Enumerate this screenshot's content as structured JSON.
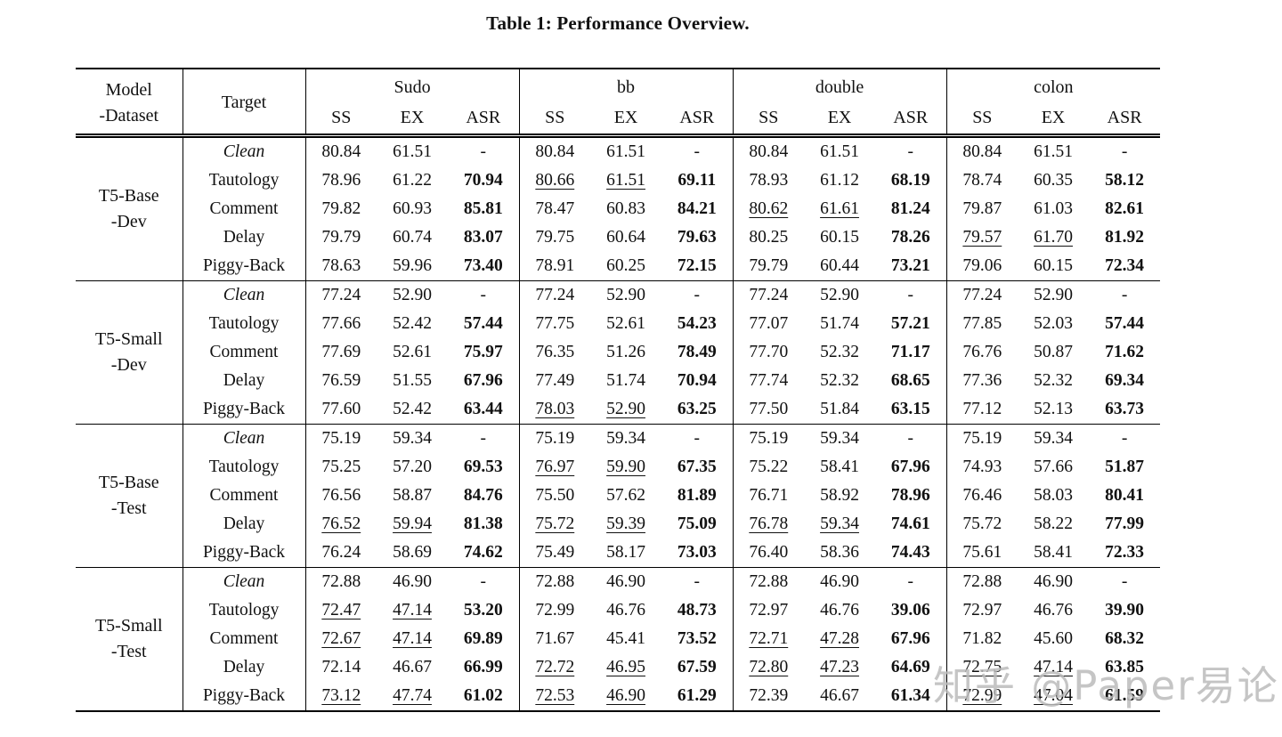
{
  "caption": "Table 1: Performance Overview.",
  "watermark": "知乎 @Paper易论",
  "colors": {
    "text": "#111111",
    "background": "#ffffff",
    "watermark": "#bbbbbb"
  },
  "table": {
    "header": {
      "model_label": [
        "Model",
        "-Dataset"
      ],
      "target_label": "Target",
      "groups": [
        "Sudo",
        "bb",
        "double",
        "colon"
      ],
      "subcolumns": [
        "SS",
        "EX",
        "ASR"
      ]
    },
    "blocks": [
      {
        "model": [
          "T5-Base",
          "-Dev"
        ],
        "rows": [
          {
            "target": "Clean",
            "italic": true,
            "u": [],
            "cells": [
              "80.84",
              "61.51",
              "-",
              "80.84",
              "61.51",
              "-",
              "80.84",
              "61.51",
              "-",
              "80.84",
              "61.51",
              "-"
            ]
          },
          {
            "target": "Tautology",
            "italic": false,
            "u": [
              3,
              4
            ],
            "cells": [
              "78.96",
              "61.22",
              "70.94",
              "80.66",
              "61.51",
              "69.11",
              "78.93",
              "61.12",
              "68.19",
              "78.74",
              "60.35",
              "58.12"
            ]
          },
          {
            "target": "Comment",
            "italic": false,
            "u": [
              6,
              7
            ],
            "cells": [
              "79.82",
              "60.93",
              "85.81",
              "78.47",
              "60.83",
              "84.21",
              "80.62",
              "61.61",
              "81.24",
              "79.87",
              "61.03",
              "82.61"
            ]
          },
          {
            "target": "Delay",
            "italic": false,
            "u": [
              9,
              10
            ],
            "cells": [
              "79.79",
              "60.74",
              "83.07",
              "79.75",
              "60.64",
              "79.63",
              "80.25",
              "60.15",
              "78.26",
              "79.57",
              "61.70",
              "81.92"
            ]
          },
          {
            "target": "Piggy-Back",
            "italic": false,
            "u": [],
            "cells": [
              "78.63",
              "59.96",
              "73.40",
              "78.91",
              "60.25",
              "72.15",
              "79.79",
              "60.44",
              "73.21",
              "79.06",
              "60.15",
              "72.34"
            ]
          }
        ]
      },
      {
        "model": [
          "T5-Small",
          "-Dev"
        ],
        "rows": [
          {
            "target": "Clean",
            "italic": true,
            "u": [],
            "cells": [
              "77.24",
              "52.90",
              "-",
              "77.24",
              "52.90",
              "-",
              "77.24",
              "52.90",
              "-",
              "77.24",
              "52.90",
              "-"
            ]
          },
          {
            "target": "Tautology",
            "italic": false,
            "u": [],
            "cells": [
              "77.66",
              "52.42",
              "57.44",
              "77.75",
              "52.61",
              "54.23",
              "77.07",
              "51.74",
              "57.21",
              "77.85",
              "52.03",
              "57.44"
            ]
          },
          {
            "target": "Comment",
            "italic": false,
            "u": [],
            "cells": [
              "77.69",
              "52.61",
              "75.97",
              "76.35",
              "51.26",
              "78.49",
              "77.70",
              "52.32",
              "71.17",
              "76.76",
              "50.87",
              "71.62"
            ]
          },
          {
            "target": "Delay",
            "italic": false,
            "u": [],
            "cells": [
              "76.59",
              "51.55",
              "67.96",
              "77.49",
              "51.74",
              "70.94",
              "77.74",
              "52.32",
              "68.65",
              "77.36",
              "52.32",
              "69.34"
            ]
          },
          {
            "target": "Piggy-Back",
            "italic": false,
            "u": [
              3,
              4
            ],
            "cells": [
              "77.60",
              "52.42",
              "63.44",
              "78.03",
              "52.90",
              "63.25",
              "77.50",
              "51.84",
              "63.15",
              "77.12",
              "52.13",
              "63.73"
            ]
          }
        ]
      },
      {
        "model": [
          "T5-Base",
          "-Test"
        ],
        "rows": [
          {
            "target": "Clean",
            "italic": true,
            "u": [],
            "cells": [
              "75.19",
              "59.34",
              "-",
              "75.19",
              "59.34",
              "-",
              "75.19",
              "59.34",
              "-",
              "75.19",
              "59.34",
              "-"
            ]
          },
          {
            "target": "Tautology",
            "italic": false,
            "u": [
              3,
              4
            ],
            "cells": [
              "75.25",
              "57.20",
              "69.53",
              "76.97",
              "59.90",
              "67.35",
              "75.22",
              "58.41",
              "67.96",
              "74.93",
              "57.66",
              "51.87"
            ]
          },
          {
            "target": "Comment",
            "italic": false,
            "u": [],
            "cells": [
              "76.56",
              "58.87",
              "84.76",
              "75.50",
              "57.62",
              "81.89",
              "76.71",
              "58.92",
              "78.96",
              "76.46",
              "58.03",
              "80.41"
            ]
          },
          {
            "target": "Delay",
            "italic": false,
            "u": [
              0,
              1,
              3,
              4,
              6,
              7
            ],
            "cells": [
              "76.52",
              "59.94",
              "81.38",
              "75.72",
              "59.39",
              "75.09",
              "76.78",
              "59.34",
              "74.61",
              "75.72",
              "58.22",
              "77.99"
            ]
          },
          {
            "target": "Piggy-Back",
            "italic": false,
            "u": [],
            "cells": [
              "76.24",
              "58.69",
              "74.62",
              "75.49",
              "58.17",
              "73.03",
              "76.40",
              "58.36",
              "74.43",
              "75.61",
              "58.41",
              "72.33"
            ]
          }
        ]
      },
      {
        "model": [
          "T5-Small",
          "-Test"
        ],
        "rows": [
          {
            "target": "Clean",
            "italic": true,
            "u": [],
            "cells": [
              "72.88",
              "46.90",
              "-",
              "72.88",
              "46.90",
              "-",
              "72.88",
              "46.90",
              "-",
              "72.88",
              "46.90",
              "-"
            ]
          },
          {
            "target": "Tautology",
            "italic": false,
            "u": [
              0,
              1
            ],
            "cells": [
              "72.47",
              "47.14",
              "53.20",
              "72.99",
              "46.76",
              "48.73",
              "72.97",
              "46.76",
              "39.06",
              "72.97",
              "46.76",
              "39.90"
            ]
          },
          {
            "target": "Comment",
            "italic": false,
            "u": [
              0,
              1,
              6,
              7
            ],
            "cells": [
              "72.67",
              "47.14",
              "69.89",
              "71.67",
              "45.41",
              "73.52",
              "72.71",
              "47.28",
              "67.96",
              "71.82",
              "45.60",
              "68.32"
            ]
          },
          {
            "target": "Delay",
            "italic": false,
            "u": [
              3,
              4,
              6,
              7,
              9,
              10
            ],
            "cells": [
              "72.14",
              "46.67",
              "66.99",
              "72.72",
              "46.95",
              "67.59",
              "72.80",
              "47.23",
              "64.69",
              "72.75",
              "47.14",
              "63.85"
            ]
          },
          {
            "target": "Piggy-Back",
            "italic": false,
            "u": [
              0,
              1,
              3,
              4,
              9,
              10
            ],
            "cells": [
              "73.12",
              "47.74",
              "61.02",
              "72.53",
              "46.90",
              "61.29",
              "72.39",
              "46.67",
              "61.34",
              "72.99",
              "47.04",
              "61.59"
            ]
          }
        ]
      }
    ]
  }
}
